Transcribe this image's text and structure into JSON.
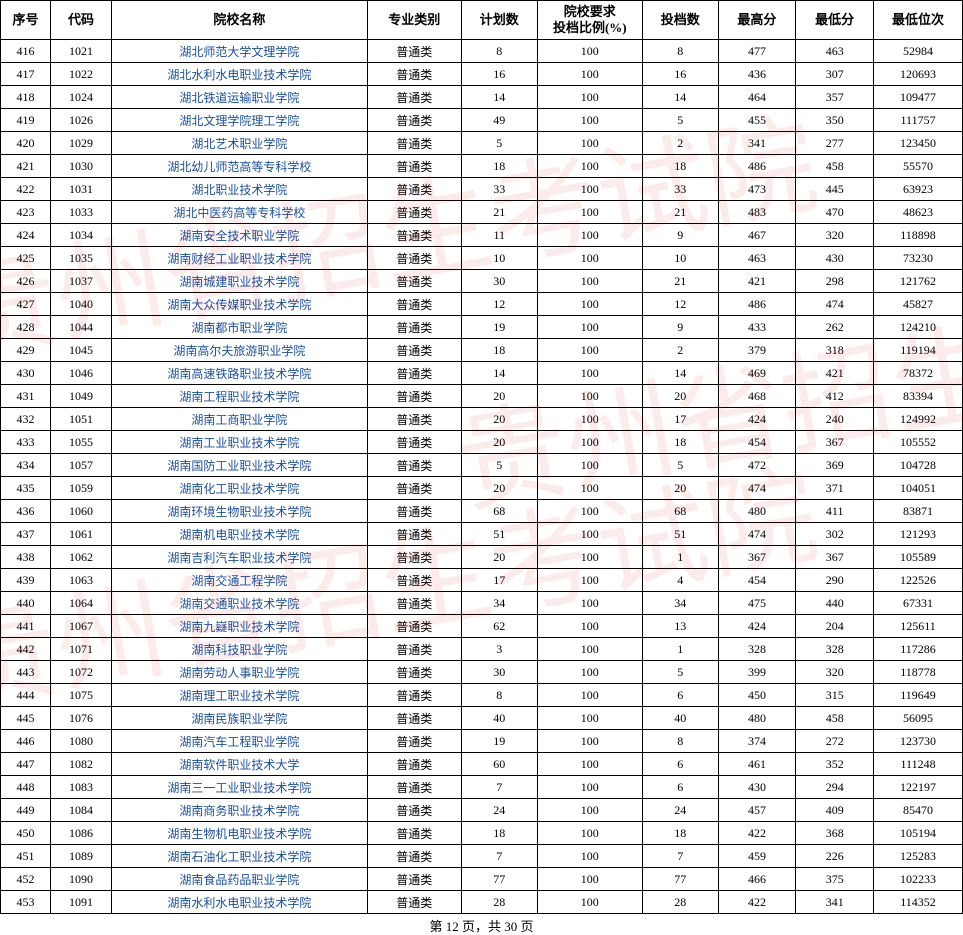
{
  "columns": [
    {
      "key": "seq",
      "label": "序号",
      "class": "col-seq"
    },
    {
      "key": "code",
      "label": "代码",
      "class": "col-code"
    },
    {
      "key": "name",
      "label": "院校名称",
      "class": "col-name"
    },
    {
      "key": "type",
      "label": "专业类别",
      "class": "col-type"
    },
    {
      "key": "plan",
      "label": "计划数",
      "class": "col-plan"
    },
    {
      "key": "ratio",
      "label": "院校要求\n投档比例(%)",
      "class": "col-ratio"
    },
    {
      "key": "throw",
      "label": "投档数",
      "class": "col-throw"
    },
    {
      "key": "max",
      "label": "最高分",
      "class": "col-max"
    },
    {
      "key": "min",
      "label": "最低分",
      "class": "col-min"
    },
    {
      "key": "rank",
      "label": "最低位次",
      "class": "col-rank"
    }
  ],
  "rows": [
    {
      "seq": "416",
      "code": "1021",
      "name": "湖北师范大学文理学院",
      "type": "普通类",
      "plan": "8",
      "ratio": "100",
      "throw": "8",
      "max": "477",
      "min": "463",
      "rank": "52984"
    },
    {
      "seq": "417",
      "code": "1022",
      "name": "湖北水利水电职业技术学院",
      "type": "普通类",
      "plan": "16",
      "ratio": "100",
      "throw": "16",
      "max": "436",
      "min": "307",
      "rank": "120693"
    },
    {
      "seq": "418",
      "code": "1024",
      "name": "湖北铁道运输职业学院",
      "type": "普通类",
      "plan": "14",
      "ratio": "100",
      "throw": "14",
      "max": "464",
      "min": "357",
      "rank": "109477"
    },
    {
      "seq": "419",
      "code": "1026",
      "name": "湖北文理学院理工学院",
      "type": "普通类",
      "plan": "49",
      "ratio": "100",
      "throw": "5",
      "max": "455",
      "min": "350",
      "rank": "111757"
    },
    {
      "seq": "420",
      "code": "1029",
      "name": "湖北艺术职业学院",
      "type": "普通类",
      "plan": "5",
      "ratio": "100",
      "throw": "2",
      "max": "341",
      "min": "277",
      "rank": "123450"
    },
    {
      "seq": "421",
      "code": "1030",
      "name": "湖北幼儿师范高等专科学校",
      "type": "普通类",
      "plan": "18",
      "ratio": "100",
      "throw": "18",
      "max": "486",
      "min": "458",
      "rank": "55570"
    },
    {
      "seq": "422",
      "code": "1031",
      "name": "湖北职业技术学院",
      "type": "普通类",
      "plan": "33",
      "ratio": "100",
      "throw": "33",
      "max": "473",
      "min": "445",
      "rank": "63923"
    },
    {
      "seq": "423",
      "code": "1033",
      "name": "湖北中医药高等专科学校",
      "type": "普通类",
      "plan": "21",
      "ratio": "100",
      "throw": "21",
      "max": "483",
      "min": "470",
      "rank": "48623"
    },
    {
      "seq": "424",
      "code": "1034",
      "name": "湖南安全技术职业学院",
      "type": "普通类",
      "plan": "11",
      "ratio": "100",
      "throw": "9",
      "max": "467",
      "min": "320",
      "rank": "118898"
    },
    {
      "seq": "425",
      "code": "1035",
      "name": "湖南财经工业职业技术学院",
      "type": "普通类",
      "plan": "10",
      "ratio": "100",
      "throw": "10",
      "max": "463",
      "min": "430",
      "rank": "73230"
    },
    {
      "seq": "426",
      "code": "1037",
      "name": "湖南城建职业技术学院",
      "type": "普通类",
      "plan": "30",
      "ratio": "100",
      "throw": "21",
      "max": "421",
      "min": "298",
      "rank": "121762"
    },
    {
      "seq": "427",
      "code": "1040",
      "name": "湖南大众传媒职业技术学院",
      "type": "普通类",
      "plan": "12",
      "ratio": "100",
      "throw": "12",
      "max": "486",
      "min": "474",
      "rank": "45827"
    },
    {
      "seq": "428",
      "code": "1044",
      "name": "湖南都市职业学院",
      "type": "普通类",
      "plan": "19",
      "ratio": "100",
      "throw": "9",
      "max": "433",
      "min": "262",
      "rank": "124210"
    },
    {
      "seq": "429",
      "code": "1045",
      "name": "湖南高尔夫旅游职业学院",
      "type": "普通类",
      "plan": "18",
      "ratio": "100",
      "throw": "2",
      "max": "379",
      "min": "318",
      "rank": "119194"
    },
    {
      "seq": "430",
      "code": "1046",
      "name": "湖南高速铁路职业技术学院",
      "type": "普通类",
      "plan": "14",
      "ratio": "100",
      "throw": "14",
      "max": "469",
      "min": "421",
      "rank": "78372"
    },
    {
      "seq": "431",
      "code": "1049",
      "name": "湖南工程职业技术学院",
      "type": "普通类",
      "plan": "20",
      "ratio": "100",
      "throw": "20",
      "max": "468",
      "min": "412",
      "rank": "83394"
    },
    {
      "seq": "432",
      "code": "1051",
      "name": "湖南工商职业学院",
      "type": "普通类",
      "plan": "20",
      "ratio": "100",
      "throw": "17",
      "max": "424",
      "min": "240",
      "rank": "124992"
    },
    {
      "seq": "433",
      "code": "1055",
      "name": "湖南工业职业技术学院",
      "type": "普通类",
      "plan": "20",
      "ratio": "100",
      "throw": "18",
      "max": "454",
      "min": "367",
      "rank": "105552"
    },
    {
      "seq": "434",
      "code": "1057",
      "name": "湖南国防工业职业技术学院",
      "type": "普通类",
      "plan": "5",
      "ratio": "100",
      "throw": "5",
      "max": "472",
      "min": "369",
      "rank": "104728"
    },
    {
      "seq": "435",
      "code": "1059",
      "name": "湖南化工职业技术学院",
      "type": "普通类",
      "plan": "20",
      "ratio": "100",
      "throw": "20",
      "max": "474",
      "min": "371",
      "rank": "104051"
    },
    {
      "seq": "436",
      "code": "1060",
      "name": "湖南环境生物职业技术学院",
      "type": "普通类",
      "plan": "68",
      "ratio": "100",
      "throw": "68",
      "max": "480",
      "min": "411",
      "rank": "83871"
    },
    {
      "seq": "437",
      "code": "1061",
      "name": "湖南机电职业技术学院",
      "type": "普通类",
      "plan": "51",
      "ratio": "100",
      "throw": "51",
      "max": "474",
      "min": "302",
      "rank": "121293"
    },
    {
      "seq": "438",
      "code": "1062",
      "name": "湖南吉利汽车职业技术学院",
      "type": "普通类",
      "plan": "20",
      "ratio": "100",
      "throw": "1",
      "max": "367",
      "min": "367",
      "rank": "105589"
    },
    {
      "seq": "439",
      "code": "1063",
      "name": "湖南交通工程学院",
      "type": "普通类",
      "plan": "17",
      "ratio": "100",
      "throw": "4",
      "max": "454",
      "min": "290",
      "rank": "122526"
    },
    {
      "seq": "440",
      "code": "1064",
      "name": "湖南交通职业技术学院",
      "type": "普通类",
      "plan": "34",
      "ratio": "100",
      "throw": "34",
      "max": "475",
      "min": "440",
      "rank": "67331"
    },
    {
      "seq": "441",
      "code": "1067",
      "name": "湖南九嶷职业技术学院",
      "type": "普通类",
      "plan": "62",
      "ratio": "100",
      "throw": "13",
      "max": "424",
      "min": "204",
      "rank": "125611"
    },
    {
      "seq": "442",
      "code": "1071",
      "name": "湖南科技职业学院",
      "type": "普通类",
      "plan": "3",
      "ratio": "100",
      "throw": "1",
      "max": "328",
      "min": "328",
      "rank": "117286"
    },
    {
      "seq": "443",
      "code": "1072",
      "name": "湖南劳动人事职业学院",
      "type": "普通类",
      "plan": "30",
      "ratio": "100",
      "throw": "5",
      "max": "399",
      "min": "320",
      "rank": "118778"
    },
    {
      "seq": "444",
      "code": "1075",
      "name": "湖南理工职业技术学院",
      "type": "普通类",
      "plan": "8",
      "ratio": "100",
      "throw": "6",
      "max": "450",
      "min": "315",
      "rank": "119649"
    },
    {
      "seq": "445",
      "code": "1076",
      "name": "湖南民族职业学院",
      "type": "普通类",
      "plan": "40",
      "ratio": "100",
      "throw": "40",
      "max": "480",
      "min": "458",
      "rank": "56095"
    },
    {
      "seq": "446",
      "code": "1080",
      "name": "湖南汽车工程职业学院",
      "type": "普通类",
      "plan": "19",
      "ratio": "100",
      "throw": "8",
      "max": "374",
      "min": "272",
      "rank": "123730"
    },
    {
      "seq": "447",
      "code": "1082",
      "name": "湖南软件职业技术大学",
      "type": "普通类",
      "plan": "60",
      "ratio": "100",
      "throw": "6",
      "max": "461",
      "min": "352",
      "rank": "111248"
    },
    {
      "seq": "448",
      "code": "1083",
      "name": "湖南三一工业职业技术学院",
      "type": "普通类",
      "plan": "7",
      "ratio": "100",
      "throw": "6",
      "max": "430",
      "min": "294",
      "rank": "122197"
    },
    {
      "seq": "449",
      "code": "1084",
      "name": "湖南商务职业技术学院",
      "type": "普通类",
      "plan": "24",
      "ratio": "100",
      "throw": "24",
      "max": "457",
      "min": "409",
      "rank": "85470"
    },
    {
      "seq": "450",
      "code": "1086",
      "name": "湖南生物机电职业技术学院",
      "type": "普通类",
      "plan": "18",
      "ratio": "100",
      "throw": "18",
      "max": "422",
      "min": "368",
      "rank": "105194"
    },
    {
      "seq": "451",
      "code": "1089",
      "name": "湖南石油化工职业技术学院",
      "type": "普通类",
      "plan": "7",
      "ratio": "100",
      "throw": "7",
      "max": "459",
      "min": "226",
      "rank": "125283"
    },
    {
      "seq": "452",
      "code": "1090",
      "name": "湖南食品药品职业学院",
      "type": "普通类",
      "plan": "77",
      "ratio": "100",
      "throw": "77",
      "max": "466",
      "min": "375",
      "rank": "102233"
    },
    {
      "seq": "453",
      "code": "1091",
      "name": "湖南水利水电职业技术学院",
      "type": "普通类",
      "plan": "28",
      "ratio": "100",
      "throw": "28",
      "max": "422",
      "min": "341",
      "rank": "114352"
    }
  ],
  "footer": "第 12 页，共 30 页"
}
